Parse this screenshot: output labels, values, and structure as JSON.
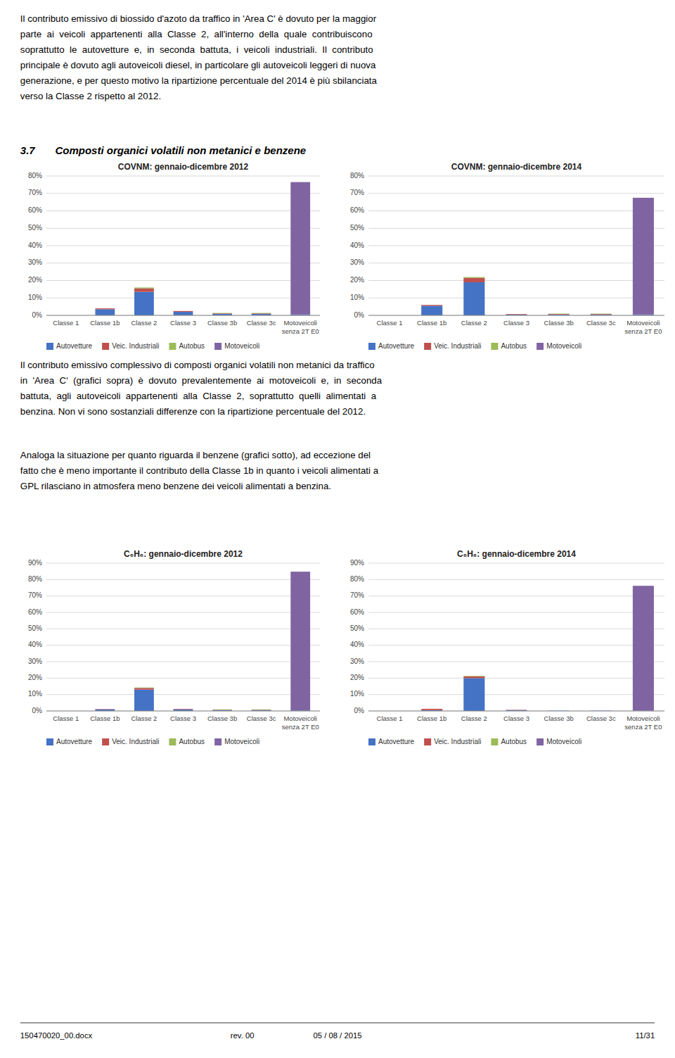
{
  "page": {
    "paragraphs": [
      [
        "Il contributo emissivo di biossido d'azoto da traffico in 'Area C' è dovuto per la maggior",
        "parte  ai  veicoli  appartenenti  alla  Classe  2,  all'interno  della  quale  contribuiscono",
        "soprattutto  le  autovetture  e,  in  seconda  battuta,  i  veicoli  industriali.  Il  contributo",
        "principale è dovuto agli autoveicoli diesel, in particolare gli autoveicoli leggeri di nuova",
        "generazione, e per questo motivo la ripartizione percentuale del 2014 è più sbilanciata",
        "verso la Classe 2 rispetto al 2012."
      ],
      [
        "Il contributo emissivo complessivo di composti organici volatili non metanici da traffico",
        "in  'Area  C'  (grafici  sopra)  è  dovuto  prevalentemente  ai  motoveicoli  e,  in  seconda",
        "battuta,  agli  autoveicoli  appartenenti  alla  Classe  2,  soprattutto  quelli  alimentati  a",
        "benzina. Non vi sono sostanziali differenze con la ripartizione percentuale del 2012."
      ],
      [
        "Analoga la situazione per quanto riguarda il benzene (grafici sotto), ad eccezione del",
        "fatto che è meno importante il contributo della Classe 1b in quanto i veicoli alimentati a",
        "GPL rilasciano in atmosfera meno benzene dei veicoli alimentati a benzina."
      ]
    ],
    "section": {
      "number": "3.7",
      "title": "Composti organici volatili non metanici e benzene"
    },
    "footer": [
      "150470020_00.docx",
      "rev. 00",
      "05 / 08 / 2015",
      "11/31"
    ]
  },
  "chart_data": [
    {
      "type": "bar",
      "stacked": true,
      "grid": true,
      "legend": "bottom",
      "title": "COVNM: gennaio-dicembre 2012",
      "categories": [
        "Classe 1",
        "Classe 1b",
        "Classe 2",
        "Classe 3",
        "Classe 3b",
        "Classe 3c",
        "Motoveicoli\nsenza 2T E0"
      ],
      "series": [
        {
          "name": "Autovetture",
          "color": "#4472C4",
          "values": [
            0.0,
            3.5,
            13.5,
            2.0,
            0.8,
            0.8,
            0.5
          ]
        },
        {
          "name": "Veic. Industriali",
          "color": "#C0504D",
          "values": [
            0.0,
            0.5,
            2.0,
            0.5,
            0.3,
            0.3,
            0.0
          ]
        },
        {
          "name": "Autobus",
          "color": "#9BBB59",
          "values": [
            0.0,
            0.0,
            0.5,
            0.0,
            0.3,
            0.3,
            0.0
          ]
        },
        {
          "name": "Motoveicoli",
          "color": "#8064A2",
          "values": [
            0.0,
            0.0,
            0.0,
            0.0,
            0.0,
            0.0,
            76.0
          ]
        }
      ],
      "ylim": [
        0,
        80
      ],
      "yticks": [
        {
          "value": 0,
          "label": "0%"
        },
        {
          "value": 10,
          "label": "10%"
        },
        {
          "value": 20,
          "label": "20%"
        },
        {
          "value": 30,
          "label": "30%"
        },
        {
          "value": 40,
          "label": "40%"
        },
        {
          "value": 50,
          "label": "50%"
        },
        {
          "value": 60,
          "label": "60%"
        },
        {
          "value": 70,
          "label": "70%"
        },
        {
          "value": 80,
          "label": "80%"
        }
      ]
    },
    {
      "type": "bar",
      "stacked": true,
      "grid": true,
      "legend": "bottom",
      "title": "COVNM: gennaio-dicembre 2014",
      "categories": [
        "Classe 1",
        "Classe 1b",
        "Classe 2",
        "Classe 3",
        "Classe 3b",
        "Classe 3c",
        "Motoveicoli\nsenza 2T E0"
      ],
      "series": [
        {
          "name": "Autovetture",
          "color": "#4472C4",
          "values": [
            0.0,
            5.5,
            19.0,
            0.5,
            0.5,
            0.5,
            0.5
          ]
        },
        {
          "name": "Veic. Industriali",
          "color": "#C0504D",
          "values": [
            0.0,
            0.5,
            2.5,
            0.3,
            0.3,
            0.3,
            0.0
          ]
        },
        {
          "name": "Autobus",
          "color": "#9BBB59",
          "values": [
            0.0,
            0.0,
            0.5,
            0.0,
            0.2,
            0.2,
            0.0
          ]
        },
        {
          "name": "Motoveicoli",
          "color": "#8064A2",
          "values": [
            0.0,
            0.0,
            0.0,
            0.0,
            0.0,
            0.0,
            67.0
          ]
        }
      ],
      "ylim": [
        0,
        80
      ],
      "yticks": [
        {
          "value": 0,
          "label": "0%"
        },
        {
          "value": 10,
          "label": "10%"
        },
        {
          "value": 20,
          "label": "20%"
        },
        {
          "value": 30,
          "label": "30%"
        },
        {
          "value": 40,
          "label": "40%"
        },
        {
          "value": 50,
          "label": "50%"
        },
        {
          "value": 60,
          "label": "60%"
        },
        {
          "value": 70,
          "label": "70%"
        },
        {
          "value": 80,
          "label": "80%"
        }
      ]
    },
    {
      "type": "bar",
      "stacked": true,
      "grid": true,
      "legend": "bottom",
      "title": "C₆H₆: gennaio-dicembre 2012",
      "categories": [
        "Classe 1",
        "Classe 1b",
        "Classe 2",
        "Classe 3",
        "Classe 3b",
        "Classe 3c",
        "Motoveicoli\nsenza 2T E0"
      ],
      "series": [
        {
          "name": "Autovetture",
          "color": "#4472C4",
          "values": [
            0.0,
            1.0,
            13.0,
            1.0,
            0.5,
            0.5,
            0.3
          ]
        },
        {
          "name": "Veic. Industriali",
          "color": "#C0504D",
          "values": [
            0.0,
            0.2,
            1.0,
            0.3,
            0.2,
            0.2,
            0.0
          ]
        },
        {
          "name": "Autobus",
          "color": "#9BBB59",
          "values": [
            0.0,
            0.0,
            0.3,
            0.0,
            0.3,
            0.3,
            0.0
          ]
        },
        {
          "name": "Motoveicoli",
          "color": "#8064A2",
          "values": [
            0.0,
            0.0,
            0.0,
            0.0,
            0.0,
            0.0,
            84.5
          ]
        }
      ],
      "ylim": [
        0,
        90
      ],
      "yticks": [
        {
          "value": 0,
          "label": "0%"
        },
        {
          "value": 10,
          "label": "10%"
        },
        {
          "value": 20,
          "label": "20%"
        },
        {
          "value": 30,
          "label": "30%"
        },
        {
          "value": 40,
          "label": "40%"
        },
        {
          "value": 50,
          "label": "50%"
        },
        {
          "value": 60,
          "label": "60%"
        },
        {
          "value": 70,
          "label": "70%"
        },
        {
          "value": 80,
          "label": "80%"
        },
        {
          "value": 90,
          "label": "90%"
        }
      ]
    },
    {
      "type": "bar",
      "stacked": true,
      "grid": true,
      "legend": "bottom",
      "title": "C₆H₆: gennaio-dicembre 2014",
      "categories": [
        "Classe 1",
        "Classe 1b",
        "Classe 2",
        "Classe 3",
        "Classe 3b",
        "Classe 3c",
        "Motoveicoli\nsenza 2T E0"
      ],
      "series": [
        {
          "name": "Autovetture",
          "color": "#4472C4",
          "values": [
            0.0,
            0.5,
            20.0,
            0.5,
            0.2,
            0.2,
            0.2
          ]
        },
        {
          "name": "Veic. Industriali",
          "color": "#C0504D",
          "values": [
            0.0,
            0.8,
            1.0,
            0.2,
            0.0,
            0.0,
            0.0
          ]
        },
        {
          "name": "Autobus",
          "color": "#9BBB59",
          "values": [
            0.0,
            0.0,
            0.3,
            0.0,
            0.0,
            0.0,
            0.0
          ]
        },
        {
          "name": "Motoveicoli",
          "color": "#8064A2",
          "values": [
            0.0,
            0.0,
            0.0,
            0.0,
            0.0,
            0.0,
            76.0
          ]
        }
      ],
      "ylim": [
        0,
        90
      ],
      "yticks": [
        {
          "value": 0,
          "label": "0%"
        },
        {
          "value": 10,
          "label": "10%"
        },
        {
          "value": 20,
          "label": "20%"
        },
        {
          "value": 30,
          "label": "30%"
        },
        {
          "value": 40,
          "label": "40%"
        },
        {
          "value": 50,
          "label": "50%"
        },
        {
          "value": 60,
          "label": "60%"
        },
        {
          "value": 70,
          "label": "70%"
        },
        {
          "value": 80,
          "label": "80%"
        },
        {
          "value": 90,
          "label": "90%"
        }
      ]
    }
  ]
}
